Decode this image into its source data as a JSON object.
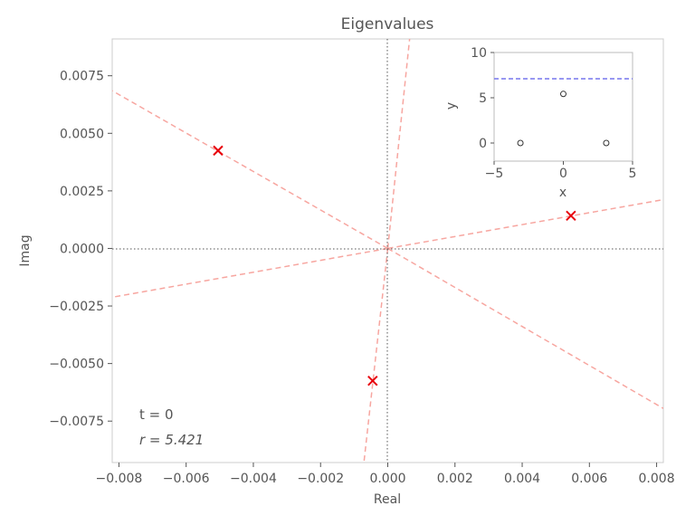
{
  "chart_data": [
    {
      "type": "scatter",
      "title": "Eigenvalues",
      "xlabel": "Real",
      "ylabel": "Imag",
      "xlim": [
        -0.0082,
        0.0082
      ],
      "ylim": [
        -0.0093,
        0.0091
      ],
      "xticks": [
        -0.008,
        -0.006,
        -0.004,
        -0.002,
        0.0,
        0.002,
        0.004,
        0.006,
        0.008
      ],
      "xtick_labels": [
        "−0.008",
        "−0.006",
        "−0.004",
        "−0.002",
        "0.000",
        "0.002",
        "0.004",
        "0.006",
        "0.008"
      ],
      "yticks": [
        0.0075,
        0.005,
        0.0025,
        0.0,
        -0.0025,
        -0.005,
        -0.0075
      ],
      "ytick_labels": [
        "0.0075",
        "0.0050",
        "0.0025",
        "0.0000",
        "−0.0025",
        "−0.0050",
        "−0.0075"
      ],
      "grid": false,
      "points": [
        {
          "x": -0.00505,
          "y": 0.00425
        },
        {
          "x": 0.00545,
          "y": 0.00142
        },
        {
          "x": -0.00045,
          "y": -0.00575
        }
      ],
      "rays": [
        {
          "x": -0.0082,
          "y": 0.00685
        },
        {
          "x": 0.0082,
          "y": -0.00695
        },
        {
          "x": -0.0082,
          "y": -0.00212
        },
        {
          "x": 0.0082,
          "y": 0.00212
        },
        {
          "x": 0.00065,
          "y": 0.0091
        },
        {
          "x": -0.00071,
          "y": -0.0093
        }
      ],
      "marker_color": "#e8000b",
      "ray_color": "#f7a6a0",
      "axis_line_color": "#555555",
      "annotations": [
        "t = 0",
        "r = 5.421"
      ],
      "annotation_position": "bottom-left"
    },
    {
      "type": "scatter",
      "title": "",
      "xlabel": "x",
      "ylabel": "y",
      "xlim": [
        -5,
        5
      ],
      "ylim": [
        -2,
        10
      ],
      "xticks": [
        -5,
        0,
        5
      ],
      "xtick_labels": [
        "−5",
        "0",
        "5"
      ],
      "yticks": [
        0,
        5,
        10
      ],
      "ytick_labels": [
        "0",
        "5",
        "10"
      ],
      "grid": false,
      "points": [
        {
          "x": -3.1,
          "y": 0
        },
        {
          "x": 0,
          "y": 5.421
        },
        {
          "x": 3.1,
          "y": 0
        }
      ],
      "hline": 7.1,
      "hline_color": "#7777ee",
      "position": "top-right"
    }
  ]
}
